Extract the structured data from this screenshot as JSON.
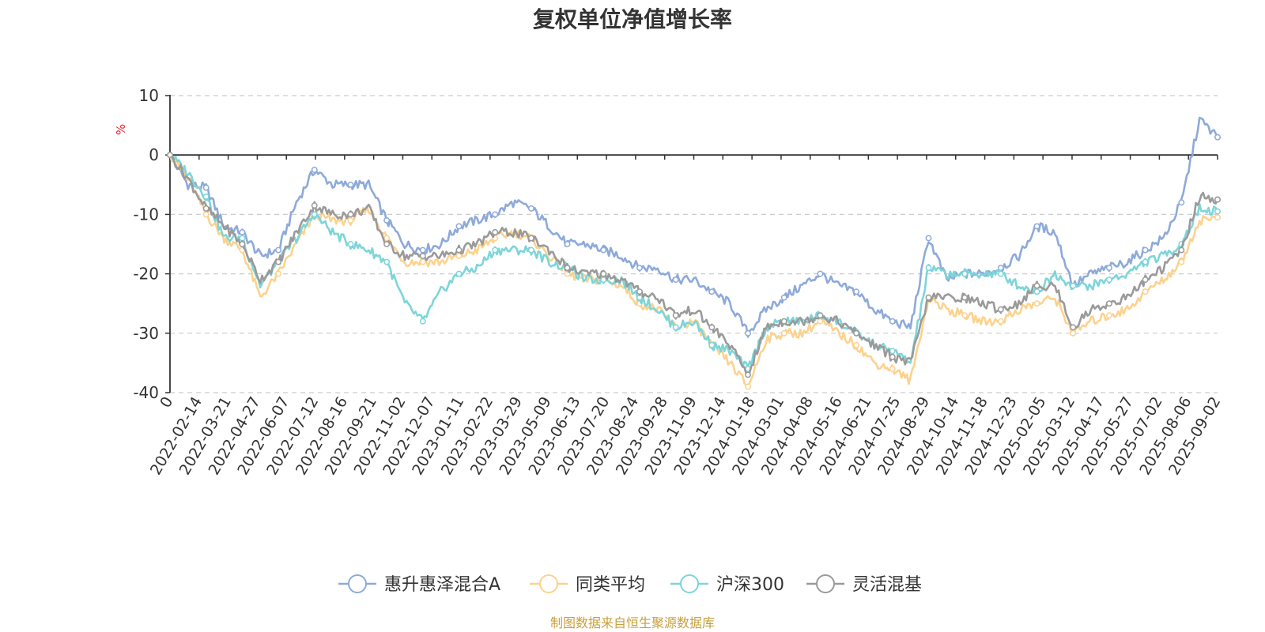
{
  "chart_data": {
    "type": "line",
    "title": "复权单位净值增长率",
    "ylabel": "%",
    "ylim": [
      -40,
      10
    ],
    "yticks": [
      10,
      0,
      -10,
      -20,
      -30,
      -40
    ],
    "x_tick_labels": [
      "0",
      "2022-02-14",
      "2022-03-21",
      "2022-04-27",
      "2022-06-07",
      "2022-07-12",
      "2022-08-16",
      "2022-09-21",
      "2022-11-02",
      "2022-12-07",
      "2023-01-11",
      "2023-02-22",
      "2023-03-29",
      "2023-05-09",
      "2023-06-13",
      "2023-07-20",
      "2023-08-24",
      "2023-09-28",
      "2023-11-09",
      "2023-12-14",
      "2024-01-18",
      "2024-03-01",
      "2024-04-08",
      "2024-05-16",
      "2024-06-21",
      "2024-07-25",
      "2024-08-29",
      "2024-10-14",
      "2024-11-18",
      "2024-12-23",
      "2025-02-05",
      "2025-03-12",
      "2025-04-17",
      "2025-05-27",
      "2025-07-02",
      "2025-08-06",
      "2025-09-02"
    ],
    "grid": true,
    "legend_position": "bottom",
    "source_note": "制图数据来自恒生聚源数据库",
    "series": [
      {
        "name": "惠升惠泽混合A",
        "color": "#8eaad9",
        "values": [
          0,
          -5,
          -5.5,
          -12,
          -13,
          -17,
          -16,
          -8,
          -2.5,
          -5,
          -5,
          -5,
          -11,
          -15,
          -16,
          -15,
          -12,
          -11,
          -10,
          -8,
          -9,
          -12,
          -15,
          -15,
          -16,
          -17,
          -19,
          -19,
          -21,
          -21,
          -23,
          -25,
          -30,
          -26,
          -24,
          -22,
          -20,
          -22,
          -23,
          -26,
          -28,
          -29,
          -14,
          -21,
          -20,
          -20,
          -19,
          -17,
          -12,
          -13,
          -22,
          -20,
          -19,
          -18,
          -16,
          -14,
          -8,
          6,
          3
        ]
      },
      {
        "name": "同类平均",
        "color": "#fcd28e",
        "values": [
          0,
          -4,
          -10,
          -14,
          -16,
          -24,
          -20,
          -15,
          -10,
          -11,
          -11,
          -9,
          -14,
          -18,
          -18,
          -18,
          -17,
          -16,
          -14,
          -13,
          -14,
          -17,
          -20,
          -21,
          -21,
          -22,
          -25,
          -26,
          -29,
          -28,
          -32,
          -35,
          -39,
          -31,
          -30,
          -30,
          -28,
          -30,
          -32,
          -35,
          -36,
          -38,
          -24,
          -26,
          -27,
          -28,
          -28,
          -26,
          -25,
          -24,
          -30,
          -28,
          -27,
          -26,
          -23,
          -21,
          -18,
          -11,
          -10.5
        ]
      },
      {
        "name": "沪深300",
        "color": "#7dd5d9",
        "values": [
          0,
          -3,
          -7,
          -14,
          -14,
          -22,
          -18,
          -14,
          -10,
          -13,
          -15,
          -16,
          -18,
          -25,
          -28,
          -23,
          -20,
          -19,
          -16,
          -16,
          -16,
          -18,
          -19,
          -21,
          -21,
          -21,
          -24,
          -26,
          -29,
          -28,
          -32,
          -33,
          -36,
          -29,
          -28,
          -28,
          -27,
          -28,
          -30,
          -32,
          -33,
          -35,
          -19,
          -20,
          -20,
          -20,
          -20,
          -22,
          -23,
          -20,
          -22,
          -22,
          -21,
          -20,
          -18,
          -17,
          -15,
          -9,
          -9.5
        ]
      },
      {
        "name": "灵活混基",
        "color": "#9a9a9a",
        "values": [
          0,
          -4,
          -9,
          -12,
          -15,
          -21,
          -18,
          -13,
          -8.5,
          -10,
          -10,
          -9,
          -15,
          -17,
          -17,
          -17,
          -16,
          -15,
          -13,
          -13,
          -14,
          -16,
          -19,
          -20,
          -20,
          -21,
          -23,
          -24,
          -27,
          -26,
          -29,
          -32,
          -37,
          -29,
          -28,
          -28,
          -27,
          -28,
          -30,
          -32,
          -34,
          -35,
          -24,
          -24,
          -24,
          -25,
          -26,
          -25,
          -22,
          -22,
          -29,
          -26,
          -25,
          -24,
          -21,
          -19,
          -16,
          -7,
          -7.5
        ]
      }
    ]
  }
}
